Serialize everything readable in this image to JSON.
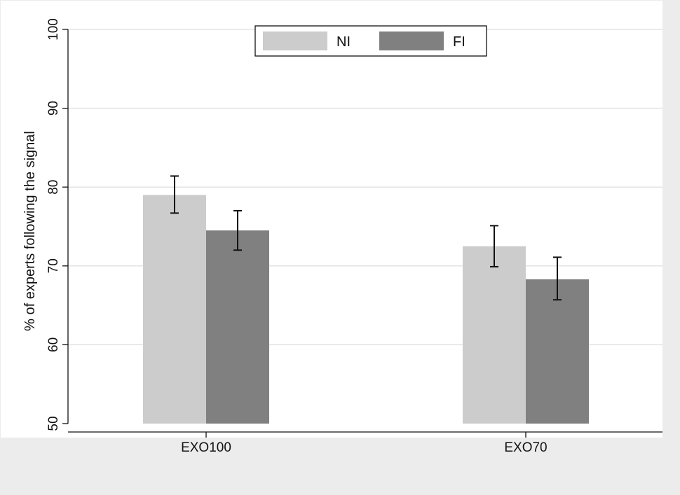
{
  "chart_data": {
    "type": "bar",
    "categories": [
      "EXO100",
      "EXO70"
    ],
    "series": [
      {
        "name": "NI",
        "values": [
          79.0,
          72.5
        ],
        "err_low": [
          76.7,
          69.9
        ],
        "err_high": [
          81.4,
          75.1
        ],
        "color": "#cccccc"
      },
      {
        "name": "FI",
        "values": [
          74.5,
          68.3
        ],
        "err_low": [
          72.0,
          65.7
        ],
        "err_high": [
          77.0,
          71.1
        ],
        "color": "#808080"
      }
    ],
    "ylabel": "% of experts following the signal",
    "xlabel": "",
    "ylim": [
      50,
      100
    ],
    "yticks": [
      50,
      60,
      70,
      80,
      90,
      100
    ],
    "grid": true,
    "legend_position": "top"
  }
}
